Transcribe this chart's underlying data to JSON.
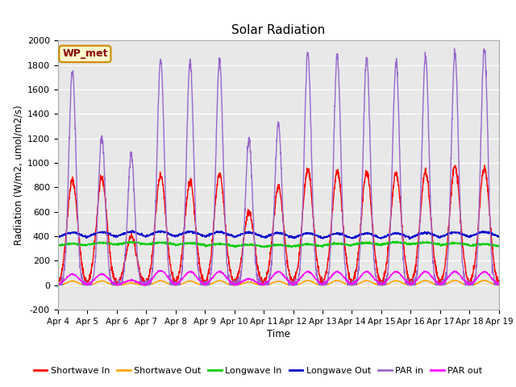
{
  "title": "Solar Radiation",
  "xlabel": "Time",
  "ylabel": "Radiation (W/m2, umol/m2/s)",
  "ylim": [
    -200,
    2000
  ],
  "yticks": [
    -200,
    0,
    200,
    400,
    600,
    800,
    1000,
    1200,
    1400,
    1600,
    1800,
    2000
  ],
  "xtick_labels": [
    "Apr 4",
    "Apr 5",
    "Apr 6",
    "Apr 7",
    "Apr 8",
    "Apr 9",
    "Apr 10",
    "Apr 11",
    "Apr 12",
    "Apr 13",
    "Apr 14",
    "Apr 15",
    "Apr 16",
    "Apr 17",
    "Apr 18",
    "Apr 19"
  ],
  "n_days": 15,
  "points_per_day": 144,
  "background_color": "#e8e8e8",
  "fig_facecolor": "#ffffff",
  "legend_label": "WP_met",
  "series_colors": {
    "sw_in": "#ff0000",
    "sw_out": "#ffa500",
    "lw_in": "#00cc00",
    "lw_out": "#0000cc",
    "par_in": "#9966cc",
    "par_out": "#ff00ff"
  },
  "legend_entries": [
    {
      "label": "Shortwave In",
      "color": "#ff0000"
    },
    {
      "label": "Shortwave Out",
      "color": "#ffa500"
    },
    {
      "label": "Longwave In",
      "color": "#00cc00"
    },
    {
      "label": "Longwave Out",
      "color": "#0000cc"
    },
    {
      "label": "PAR in",
      "color": "#9966cc"
    },
    {
      "label": "PAR out",
      "color": "#ff00ff"
    }
  ]
}
